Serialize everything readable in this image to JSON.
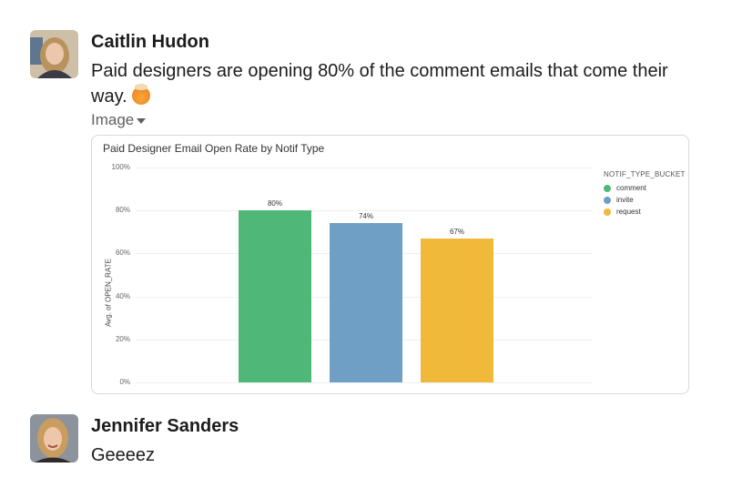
{
  "messages": [
    {
      "author": "Caitlin Hudon",
      "text": "Paid designers are opening 80% of the comment emails that come their way.",
      "emoji": "exploding-head-emoji",
      "attachment_label": "Image",
      "avatar_colors": {
        "bg": "#c9b79c",
        "hair": "#b08a55",
        "face": "#e6c3a8"
      }
    },
    {
      "author": "Jennifer Sanders",
      "text": "Geeeez",
      "avatar_colors": {
        "bg": "#8a8f98",
        "hair": "#c69a5c",
        "face": "#eac2a6"
      }
    }
  ],
  "chart_data": {
    "type": "bar",
    "title": "Paid Designer Email Open Rate by Notif Type",
    "xlabel": "",
    "ylabel": "Avg. of OPEN_RATE",
    "ylim": [
      0,
      100
    ],
    "y_ticks": [
      "0%",
      "20%",
      "40%",
      "60%",
      "80%",
      "100%"
    ],
    "categories": [
      "comment",
      "invite",
      "request"
    ],
    "values": [
      80,
      74,
      67
    ],
    "value_labels": [
      "80%",
      "74%",
      "67%"
    ],
    "colors": [
      "#4fb878",
      "#6f9fc4",
      "#f0b93a"
    ],
    "legend": {
      "title": "NOTIF_TYPE_BUCKET",
      "position": "right",
      "items": [
        "comment",
        "invite",
        "request"
      ]
    },
    "grid": true
  }
}
